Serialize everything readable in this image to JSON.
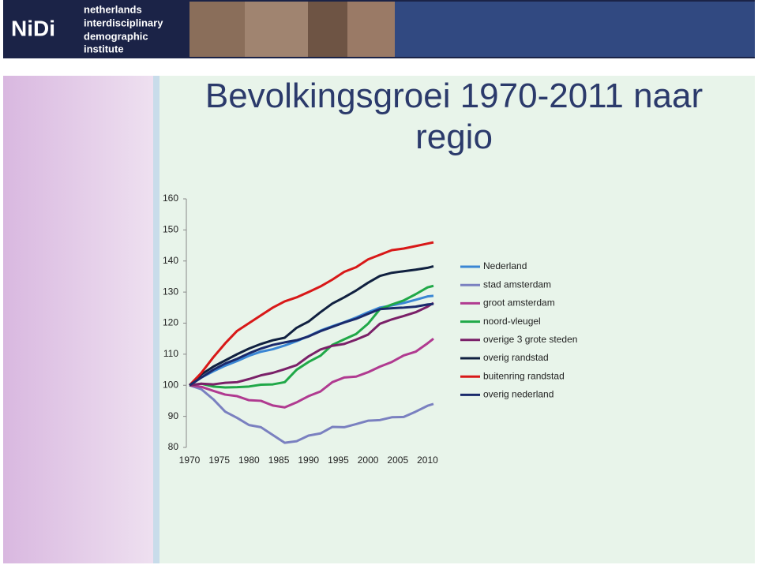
{
  "header": {
    "logo": "NiDi",
    "institute": [
      "netherlands",
      "interdisciplinary",
      "demographic",
      "institute"
    ]
  },
  "chart_data": {
    "type": "line",
    "title": "Bevolkingsgroei 1970-2011 naar regio",
    "x": [
      1970,
      1972,
      1974,
      1976,
      1978,
      1980,
      1982,
      1984,
      1986,
      1988,
      1990,
      1992,
      1994,
      1996,
      1998,
      2000,
      2002,
      2004,
      2006,
      2008,
      2010,
      2011
    ],
    "xlim": [
      1970,
      2011
    ],
    "xticks": [
      1970,
      1975,
      1980,
      1985,
      1990,
      1995,
      2000,
      2005,
      2010
    ],
    "ylim": [
      80,
      160
    ],
    "yticks": [
      80,
      90,
      100,
      110,
      120,
      130,
      140,
      150,
      160
    ],
    "series": [
      {
        "name": "Nederland",
        "color": "#3a86d4",
        "values": [
          100,
          102.5,
          104.5,
          106.3,
          107.8,
          109.5,
          110.8,
          111.6,
          112.8,
          114.2,
          115.8,
          117.6,
          119,
          120.3,
          121.8,
          123.5,
          125,
          125.7,
          126.5,
          127.5,
          128.6,
          128.8
        ]
      },
      {
        "name": "stad amsterdam",
        "color": "#7a80c0",
        "values": [
          100,
          98.7,
          95.5,
          91.5,
          89.5,
          87.2,
          86.5,
          84,
          81.5,
          82,
          83.8,
          84.5,
          86.6,
          86.5,
          87.5,
          88.6,
          88.8,
          89.7,
          89.8,
          91.5,
          93.4,
          94
        ]
      },
      {
        "name": "groot amsterdam",
        "color": "#b03a90",
        "values": [
          100,
          99.5,
          98.2,
          97,
          96.5,
          95.2,
          95,
          93.5,
          92.9,
          94.5,
          96.5,
          98,
          101,
          102.5,
          102.8,
          104.2,
          106,
          107.5,
          109.6,
          110.8,
          113.5,
          115
        ]
      },
      {
        "name": "noord-vleugel",
        "color": "#20a848",
        "values": [
          100,
          100.5,
          99.6,
          99.3,
          99.4,
          99.6,
          100.2,
          100.3,
          101,
          105,
          107.5,
          109.5,
          113,
          114.8,
          116.5,
          119.8,
          124.5,
          126,
          127.3,
          129.3,
          131.5,
          132
        ]
      },
      {
        "name": "overige 3 grote steden",
        "color": "#7a2068",
        "values": [
          100,
          100.5,
          100.3,
          100.8,
          101,
          102,
          103.2,
          104,
          105.2,
          106.5,
          109.3,
          111.5,
          112.7,
          113.3,
          114.7,
          116.3,
          119.8,
          121.2,
          122.3,
          123.5,
          125.3,
          126.5
        ]
      },
      {
        "name": "overig randstad",
        "color": "#102040",
        "values": [
          100,
          103.5,
          106,
          108,
          110,
          111.8,
          113.3,
          114.5,
          115.3,
          118.5,
          120.5,
          123.5,
          126.3,
          128.3,
          130.5,
          133,
          135.2,
          136.2,
          136.7,
          137.2,
          137.8,
          138.3
        ]
      },
      {
        "name": "buitenring randstad",
        "color": "#d81818",
        "values": [
          100,
          104,
          109,
          113.5,
          117.5,
          120,
          122.5,
          125,
          127,
          128.3,
          130,
          131.8,
          134,
          136.5,
          138,
          140.5,
          142,
          143.5,
          144,
          144.8,
          145.6,
          146
        ]
      },
      {
        "name": "overig nederland",
        "color": "#1a2a6c",
        "values": [
          100,
          102.5,
          105,
          107,
          108.5,
          110.3,
          111.8,
          113,
          113.8,
          114.5,
          115.7,
          117.4,
          118.8,
          120.2,
          121.4,
          123,
          124.5,
          124.8,
          125,
          125.3,
          126,
          126.2
        ]
      }
    ]
  }
}
